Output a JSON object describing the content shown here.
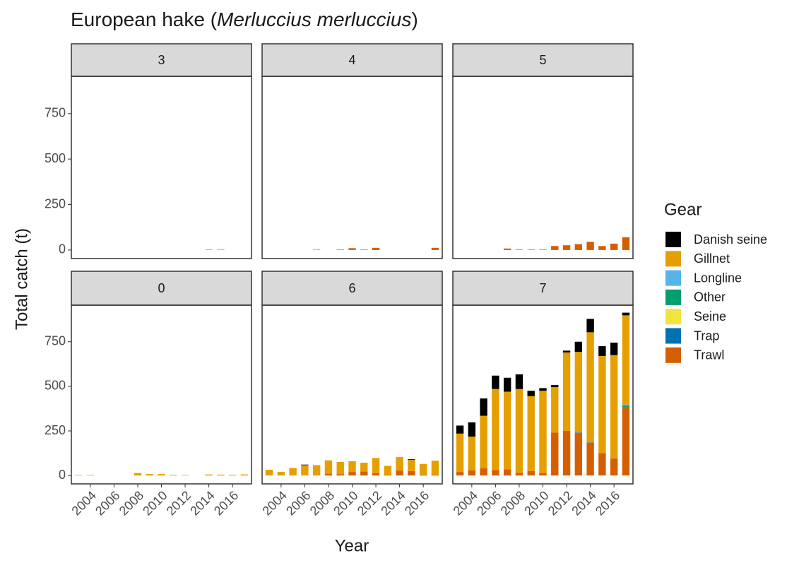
{
  "chart_data": {
    "type": "bar",
    "stacked": true,
    "title": [
      "European hake (",
      "Merluccius merluccius",
      ")"
    ],
    "x_label": "Year",
    "y_label": "Total catch (t)",
    "legend_title": "Gear",
    "x": [
      2003,
      2004,
      2005,
      2006,
      2007,
      2008,
      2009,
      2010,
      2011,
      2012,
      2013,
      2014,
      2015,
      2016,
      2017
    ],
    "xlim": [
      2002.4,
      2017.6
    ],
    "xticks": [
      2004,
      2006,
      2008,
      2010,
      2012,
      2014,
      2016
    ],
    "ylim": [
      -47,
      955
    ],
    "yticks": [
      0,
      250,
      500,
      750
    ],
    "grid": false,
    "gears": [
      {
        "name": "Danish seine",
        "color": "#000000"
      },
      {
        "name": "Gillnet",
        "color": "#E69F00"
      },
      {
        "name": "Longline",
        "color": "#56B4E9"
      },
      {
        "name": "Other",
        "color": "#009E73"
      },
      {
        "name": "Seine",
        "color": "#F0E442"
      },
      {
        "name": "Trap",
        "color": "#0072B2"
      },
      {
        "name": "Trawl",
        "color": "#D55E00"
      }
    ],
    "facets": [
      {
        "label": "3",
        "series": [
          [
            0,
            0,
            0,
            0,
            0,
            0,
            0,
            0,
            0,
            0,
            0,
            0,
            0,
            0,
            0
          ],
          [
            0,
            0,
            0,
            0,
            0,
            0,
            0,
            0,
            0,
            0,
            0,
            3,
            3,
            0,
            0
          ],
          [
            0,
            0,
            0,
            0,
            0,
            0,
            0,
            0,
            0,
            0,
            0,
            0,
            0,
            0,
            0
          ],
          [
            0,
            0,
            0,
            0,
            0,
            0,
            0,
            0,
            0,
            0,
            0,
            0,
            0,
            0,
            0
          ],
          [
            0,
            0,
            0,
            0,
            0,
            0,
            0,
            0,
            0,
            0,
            0,
            0,
            0,
            0,
            0
          ],
          [
            0,
            0,
            0,
            0,
            0,
            0,
            0,
            0,
            0,
            0,
            0,
            0,
            0,
            0,
            0
          ],
          [
            0,
            0,
            0,
            0,
            0,
            0,
            0,
            0,
            0,
            0,
            0,
            0,
            0,
            0,
            0
          ]
        ]
      },
      {
        "label": "4",
        "series": [
          [
            0,
            0,
            0,
            0,
            0,
            0,
            0,
            0,
            0,
            0,
            0,
            0,
            0,
            0,
            0
          ],
          [
            0,
            0,
            0,
            0,
            3,
            0,
            4,
            0,
            4,
            0,
            0,
            0,
            0,
            0,
            0
          ],
          [
            0,
            0,
            0,
            0,
            0,
            0,
            0,
            0,
            0,
            0,
            0,
            0,
            0,
            0,
            0
          ],
          [
            0,
            0,
            0,
            0,
            0,
            0,
            0,
            0,
            0,
            0,
            0,
            0,
            0,
            0,
            0
          ],
          [
            0,
            0,
            0,
            0,
            0,
            0,
            0,
            0,
            0,
            0,
            0,
            0,
            0,
            0,
            0
          ],
          [
            0,
            0,
            0,
            0,
            0,
            0,
            0,
            0,
            0,
            0,
            0,
            0,
            0,
            0,
            0
          ],
          [
            0,
            0,
            0,
            0,
            0,
            0,
            0,
            10,
            0,
            12,
            0,
            0,
            0,
            0,
            12
          ]
        ]
      },
      {
        "label": "5",
        "series": [
          [
            0,
            0,
            0,
            0,
            0,
            0,
            0,
            0,
            0,
            0,
            0,
            0,
            0,
            0,
            0
          ],
          [
            0,
            0,
            0,
            0,
            0,
            4,
            4,
            4,
            0,
            0,
            0,
            0,
            0,
            0,
            0
          ],
          [
            0,
            0,
            0,
            0,
            0,
            0,
            0,
            0,
            0,
            0,
            0,
            0,
            0,
            0,
            0
          ],
          [
            0,
            0,
            0,
            0,
            0,
            0,
            0,
            0,
            0,
            0,
            0,
            0,
            0,
            0,
            0
          ],
          [
            0,
            0,
            0,
            0,
            0,
            0,
            0,
            0,
            0,
            0,
            0,
            0,
            0,
            0,
            0
          ],
          [
            0,
            0,
            0,
            0,
            0,
            0,
            0,
            0,
            0,
            0,
            0,
            0,
            0,
            0,
            0
          ],
          [
            0,
            0,
            0,
            0,
            8,
            0,
            0,
            0,
            22,
            26,
            32,
            45,
            22,
            35,
            70
          ]
        ]
      },
      {
        "label": "0",
        "series": [
          [
            0,
            0,
            0,
            0,
            0,
            0,
            0,
            0,
            0,
            0,
            0,
            0,
            0,
            0,
            0
          ],
          [
            3,
            3,
            0,
            0,
            0,
            14,
            8,
            8,
            4,
            3,
            0,
            6,
            5,
            4,
            6
          ],
          [
            0,
            0,
            0,
            0,
            0,
            0,
            0,
            0,
            0,
            0,
            0,
            0,
            0,
            0,
            0
          ],
          [
            0,
            0,
            0,
            0,
            0,
            0,
            0,
            0,
            0,
            0,
            0,
            0,
            0,
            0,
            0
          ],
          [
            0,
            0,
            0,
            0,
            0,
            0,
            0,
            0,
            0,
            0,
            0,
            0,
            0,
            0,
            0
          ],
          [
            0,
            0,
            0,
            0,
            0,
            0,
            0,
            0,
            0,
            0,
            0,
            0,
            0,
            0,
            0
          ],
          [
            0,
            0,
            0,
            0,
            0,
            0,
            0,
            0,
            0,
            0,
            0,
            0,
            0,
            0,
            0
          ]
        ]
      },
      {
        "label": "6",
        "series": [
          [
            0,
            0,
            0,
            3,
            0,
            0,
            0,
            0,
            0,
            0,
            0,
            0,
            4,
            0,
            0
          ],
          [
            32,
            20,
            42,
            58,
            58,
            75,
            68,
            60,
            50,
            85,
            50,
            75,
            62,
            60,
            78
          ],
          [
            0,
            0,
            0,
            0,
            0,
            0,
            0,
            0,
            0,
            0,
            0,
            0,
            0,
            0,
            0
          ],
          [
            0,
            0,
            0,
            0,
            0,
            0,
            0,
            0,
            0,
            0,
            0,
            0,
            0,
            0,
            0
          ],
          [
            0,
            0,
            0,
            0,
            0,
            0,
            0,
            0,
            0,
            0,
            0,
            0,
            0,
            0,
            0
          ],
          [
            0,
            0,
            0,
            0,
            0,
            0,
            0,
            0,
            0,
            0,
            0,
            0,
            0,
            0,
            0
          ],
          [
            0,
            0,
            0,
            0,
            0,
            10,
            8,
            20,
            22,
            13,
            4,
            28,
            25,
            5,
            5
          ]
        ]
      },
      {
        "label": "7",
        "series": [
          [
            45,
            80,
            97,
            75,
            78,
            82,
            30,
            15,
            12,
            10,
            57,
            75,
            55,
            70,
            15
          ],
          [
            215,
            190,
            295,
            455,
            435,
            470,
            420,
            460,
            255,
            440,
            445,
            610,
            545,
            580,
            500
          ],
          [
            0,
            0,
            0,
            0,
            0,
            0,
            0,
            0,
            0,
            0,
            8,
            8,
            0,
            0,
            5
          ],
          [
            0,
            0,
            0,
            0,
            0,
            0,
            0,
            0,
            0,
            0,
            0,
            0,
            0,
            0,
            8
          ],
          [
            0,
            0,
            0,
            0,
            0,
            0,
            0,
            0,
            0,
            0,
            0,
            0,
            0,
            0,
            0
          ],
          [
            0,
            0,
            0,
            0,
            0,
            0,
            0,
            0,
            0,
            0,
            0,
            0,
            0,
            0,
            0
          ],
          [
            20,
            28,
            40,
            30,
            35,
            15,
            25,
            15,
            240,
            250,
            240,
            185,
            125,
            95,
            385
          ]
        ]
      }
    ]
  }
}
